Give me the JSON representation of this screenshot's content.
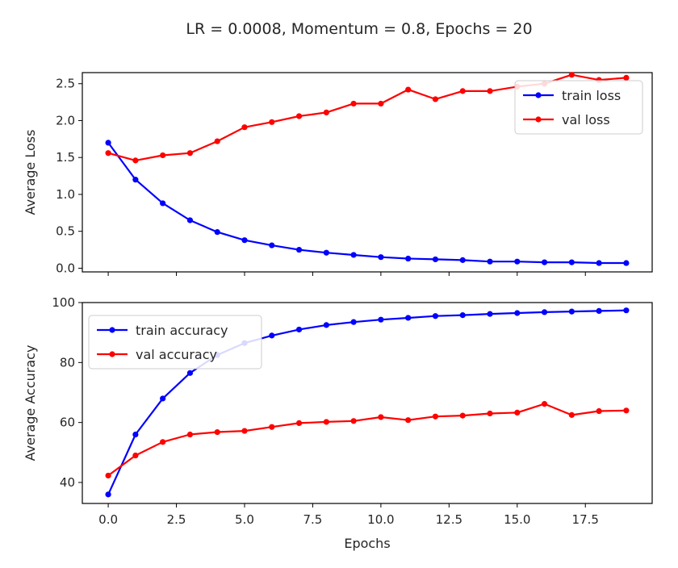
{
  "figure": {
    "title": "LR = 0.0008, Momentum = 0.8, Epochs = 20"
  },
  "chart_data": [
    {
      "type": "line",
      "ylabel": "Average Loss",
      "xlabel": "",
      "xlim": [
        -0.95,
        19.95
      ],
      "ylim": [
        -0.05,
        2.65
      ],
      "xticks": [
        0.0,
        2.5,
        5.0,
        7.5,
        10.0,
        12.5,
        15.0,
        17.5
      ],
      "xtick_labels": [
        "",
        "",
        "",
        "",
        "",
        "",
        "",
        ""
      ],
      "yticks": [
        0.0,
        0.5,
        1.0,
        1.5,
        2.0,
        2.5
      ],
      "ytick_labels": [
        "0.0",
        "0.5",
        "1.0",
        "1.5",
        "2.0",
        "2.5"
      ],
      "legend_position": "top-right",
      "x": [
        0,
        1,
        2,
        3,
        4,
        5,
        6,
        7,
        8,
        9,
        10,
        11,
        12,
        13,
        14,
        15,
        16,
        17,
        18,
        19
      ],
      "series": [
        {
          "name": "train loss",
          "color": "#0000ff",
          "values": [
            1.7,
            1.2,
            0.88,
            0.65,
            0.49,
            0.38,
            0.31,
            0.25,
            0.21,
            0.18,
            0.15,
            0.13,
            0.12,
            0.11,
            0.09,
            0.09,
            0.08,
            0.08,
            0.07,
            0.07
          ]
        },
        {
          "name": "val loss",
          "color": "#ff0000",
          "values": [
            1.56,
            1.46,
            1.53,
            1.56,
            1.72,
            1.91,
            1.98,
            2.06,
            2.11,
            2.23,
            2.23,
            2.42,
            2.29,
            2.4,
            2.4,
            2.46,
            2.5,
            2.62,
            2.55,
            2.58
          ]
        }
      ]
    },
    {
      "type": "line",
      "ylabel": "Average Accuracy",
      "xlabel": "Epochs",
      "xlim": [
        -0.95,
        19.95
      ],
      "ylim": [
        33,
        100
      ],
      "xticks": [
        0.0,
        2.5,
        5.0,
        7.5,
        10.0,
        12.5,
        15.0,
        17.5
      ],
      "xtick_labels": [
        "0.0",
        "2.5",
        "5.0",
        "7.5",
        "10.0",
        "12.5",
        "15.0",
        "17.5"
      ],
      "yticks": [
        40,
        60,
        80,
        100
      ],
      "ytick_labels": [
        "40",
        "60",
        "80",
        "100"
      ],
      "legend_position": "top-left",
      "x": [
        0,
        1,
        2,
        3,
        4,
        5,
        6,
        7,
        8,
        9,
        10,
        11,
        12,
        13,
        14,
        15,
        16,
        17,
        18,
        19
      ],
      "series": [
        {
          "name": "train accuracy",
          "color": "#0000ff",
          "values": [
            36.0,
            56.0,
            68.0,
            76.5,
            82.5,
            86.5,
            89.0,
            91.0,
            92.5,
            93.5,
            94.3,
            94.9,
            95.5,
            95.8,
            96.2,
            96.5,
            96.8,
            97.0,
            97.2,
            97.4
          ]
        },
        {
          "name": "val accuracy",
          "color": "#ff0000",
          "values": [
            42.3,
            49.0,
            53.5,
            56.0,
            56.8,
            57.2,
            58.5,
            59.8,
            60.2,
            60.5,
            61.8,
            60.8,
            62.0,
            62.3,
            63.0,
            63.3,
            66.2,
            62.5,
            63.8,
            64.0
          ]
        }
      ]
    }
  ]
}
